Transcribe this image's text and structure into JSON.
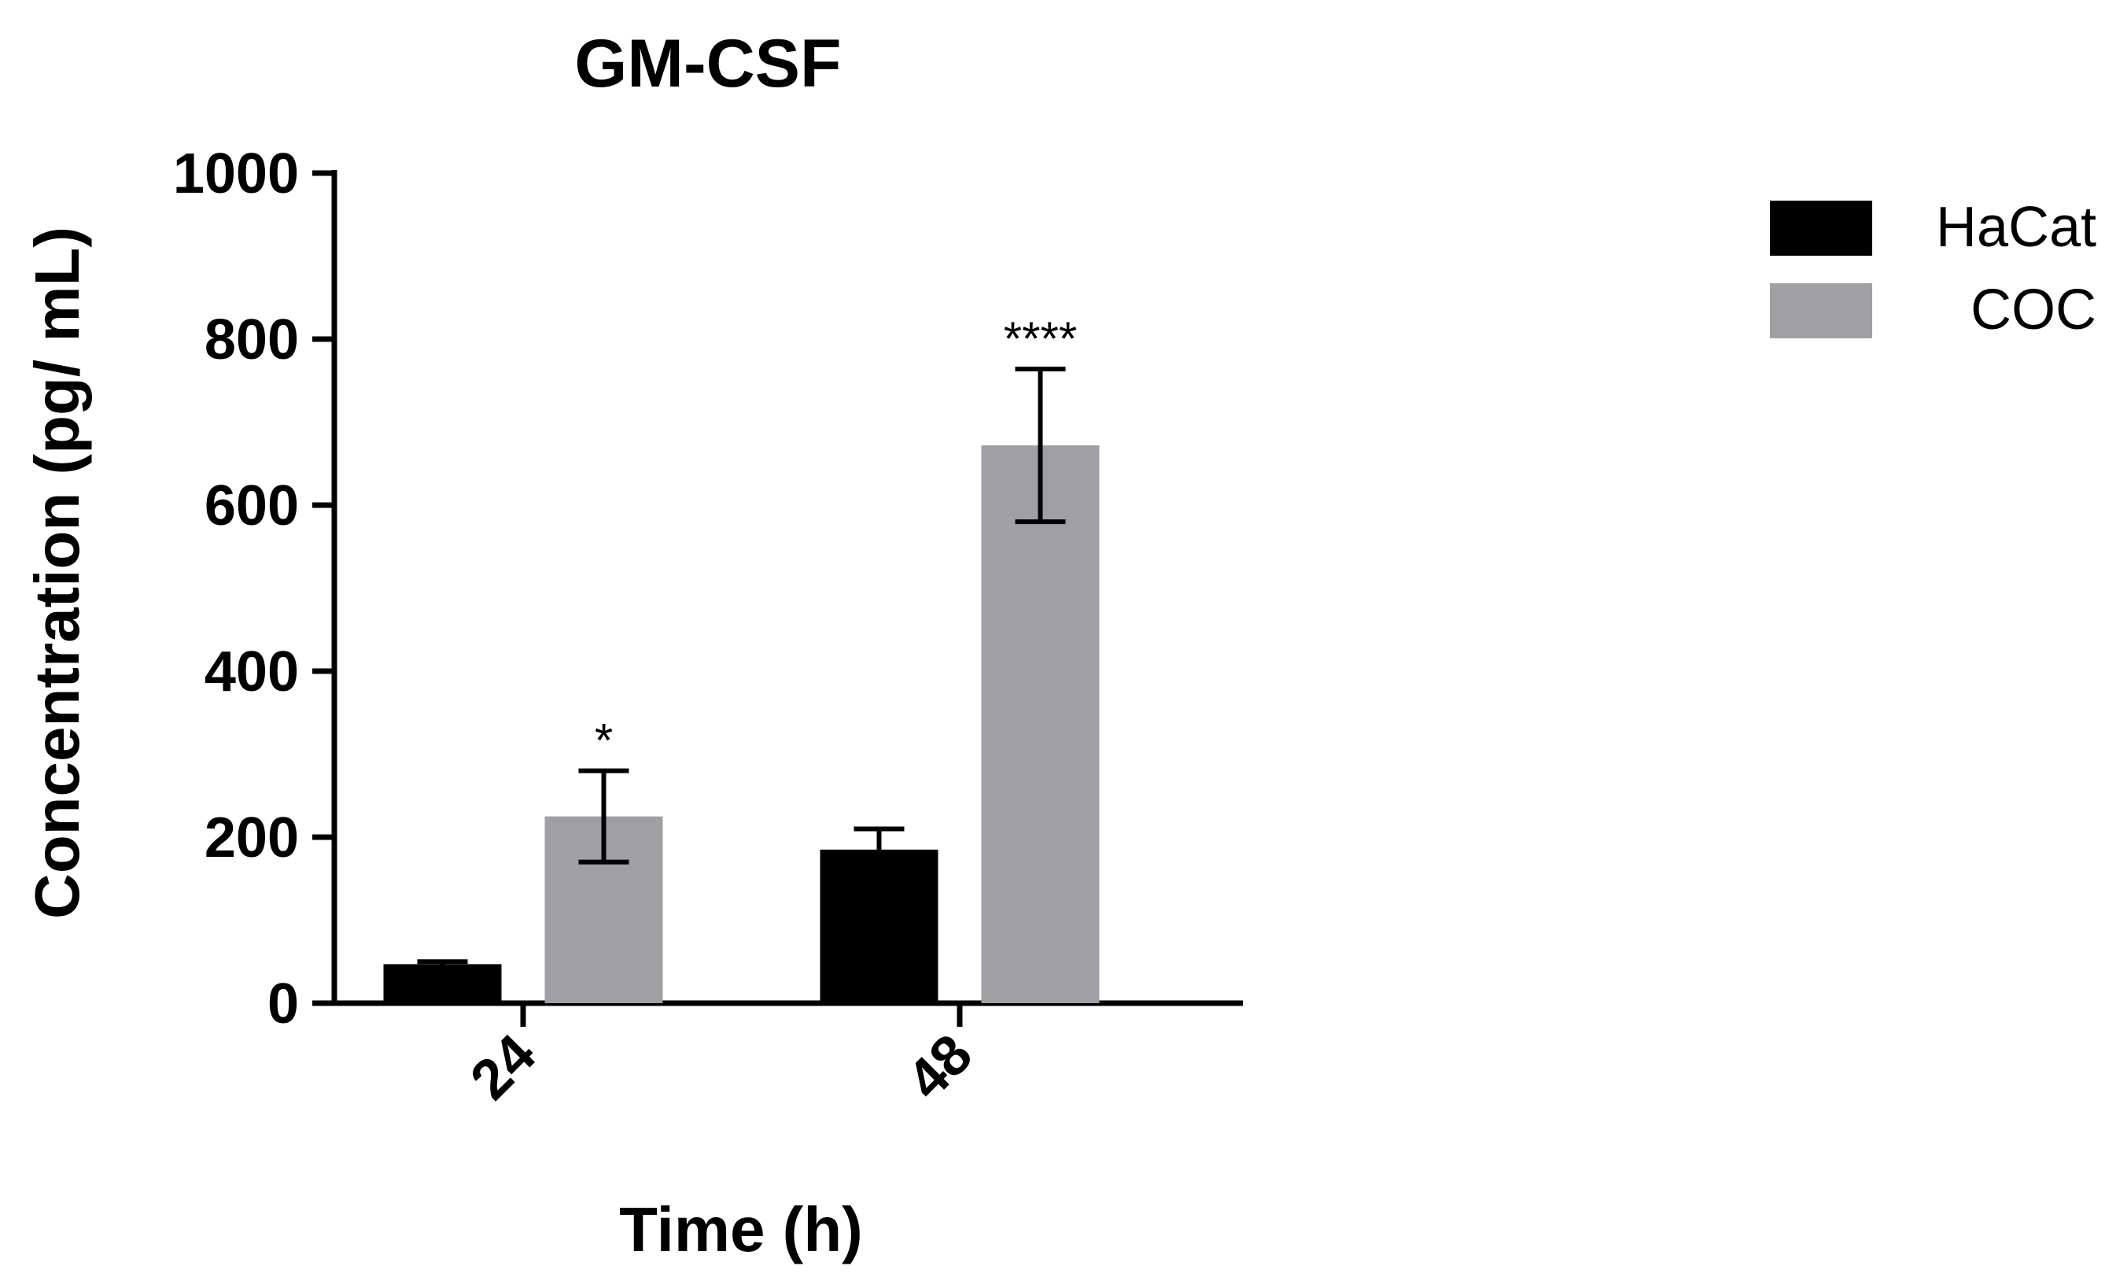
{
  "chart_data": {
    "type": "bar",
    "title": "GM-CSF",
    "xlabel": "Time (h)",
    "ylabel": "Concentration (pg/ mL)",
    "categories": [
      "24",
      "48"
    ],
    "ylim": [
      0,
      1000
    ],
    "yticks": [
      0,
      200,
      400,
      600,
      800,
      1000
    ],
    "series": [
      {
        "name": "HaCat",
        "color": "#000000",
        "values": [
          47,
          185
        ],
        "error": [
          3,
          25
        ],
        "significance": [
          "",
          ""
        ]
      },
      {
        "name": "COC",
        "color": "#a0a0a4",
        "values": [
          225,
          672
        ],
        "error": [
          55,
          92
        ],
        "significance": [
          "*",
          "****"
        ]
      }
    ],
    "legend_position": "top-right",
    "grid": false
  }
}
